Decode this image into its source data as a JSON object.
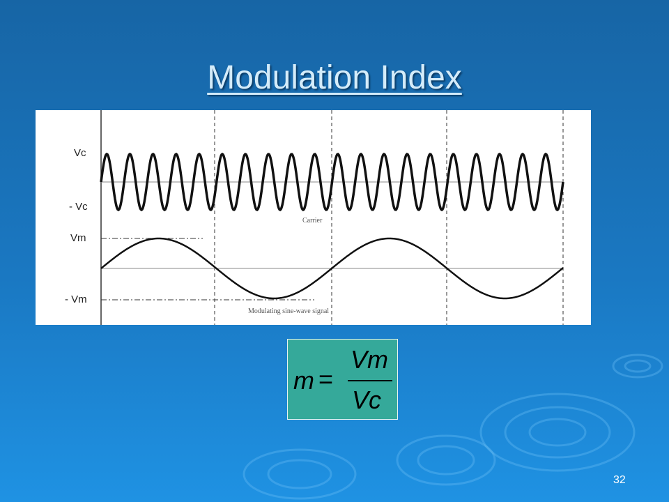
{
  "slide": {
    "title": "Modulation Index",
    "figure": {
      "vc": "Vc",
      "neg_vc": "- Vc",
      "vm": "Vm",
      "neg_vm": "- Vm",
      "carrier_caption": "Carrier",
      "modulating_caption": "Modulating sine-wave signal"
    },
    "formula": {
      "lhs": "m",
      "equals": "=",
      "numerator": "Vm",
      "denominator": "Vc"
    },
    "page_number": "32"
  }
}
